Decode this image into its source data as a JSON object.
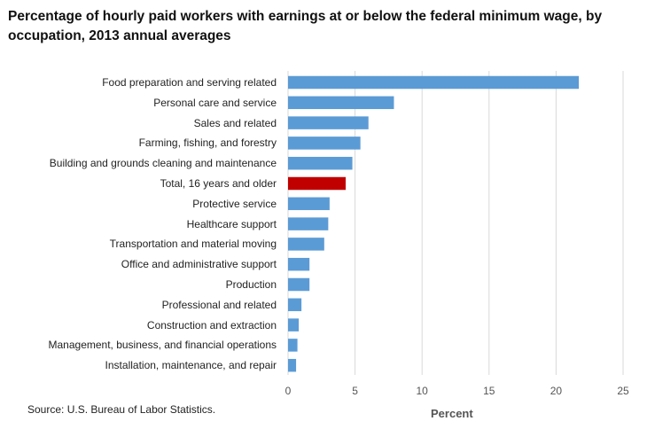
{
  "chart_data": {
    "type": "bar",
    "orientation": "horizontal",
    "title": "Percentage of hourly paid workers with earnings at or below the federal minimum wage, by occupation, 2013 annual averages",
    "categories": [
      "Food preparation and serving related",
      "Personal care and service",
      "Sales and related",
      "Farming, fishing, and forestry",
      "Building and grounds cleaning and maintenance",
      "Total, 16 years and older",
      "Protective service",
      "Healthcare support",
      "Transportation and material moving",
      "Office and administrative support",
      "Production",
      "Professional and related",
      "Construction and extraction",
      "Management, business, and financial operations",
      "Installation, maintenance, and repair"
    ],
    "values": [
      21.7,
      7.9,
      6.0,
      5.4,
      4.8,
      4.3,
      3.1,
      3.0,
      2.7,
      1.6,
      1.6,
      1.0,
      0.8,
      0.7,
      0.6
    ],
    "highlight_index": 5,
    "colors": {
      "bar": "#5b9bd5",
      "highlight": "#c00000",
      "grid": "#d9d9d9"
    },
    "xlabel": "Percent",
    "ylabel": "",
    "xlim": [
      0,
      25
    ],
    "xticks": [
      "0",
      "5",
      "10",
      "15",
      "20",
      "25"
    ],
    "grid": true,
    "source": "Source: U.S. Bureau of Labor Statistics."
  }
}
